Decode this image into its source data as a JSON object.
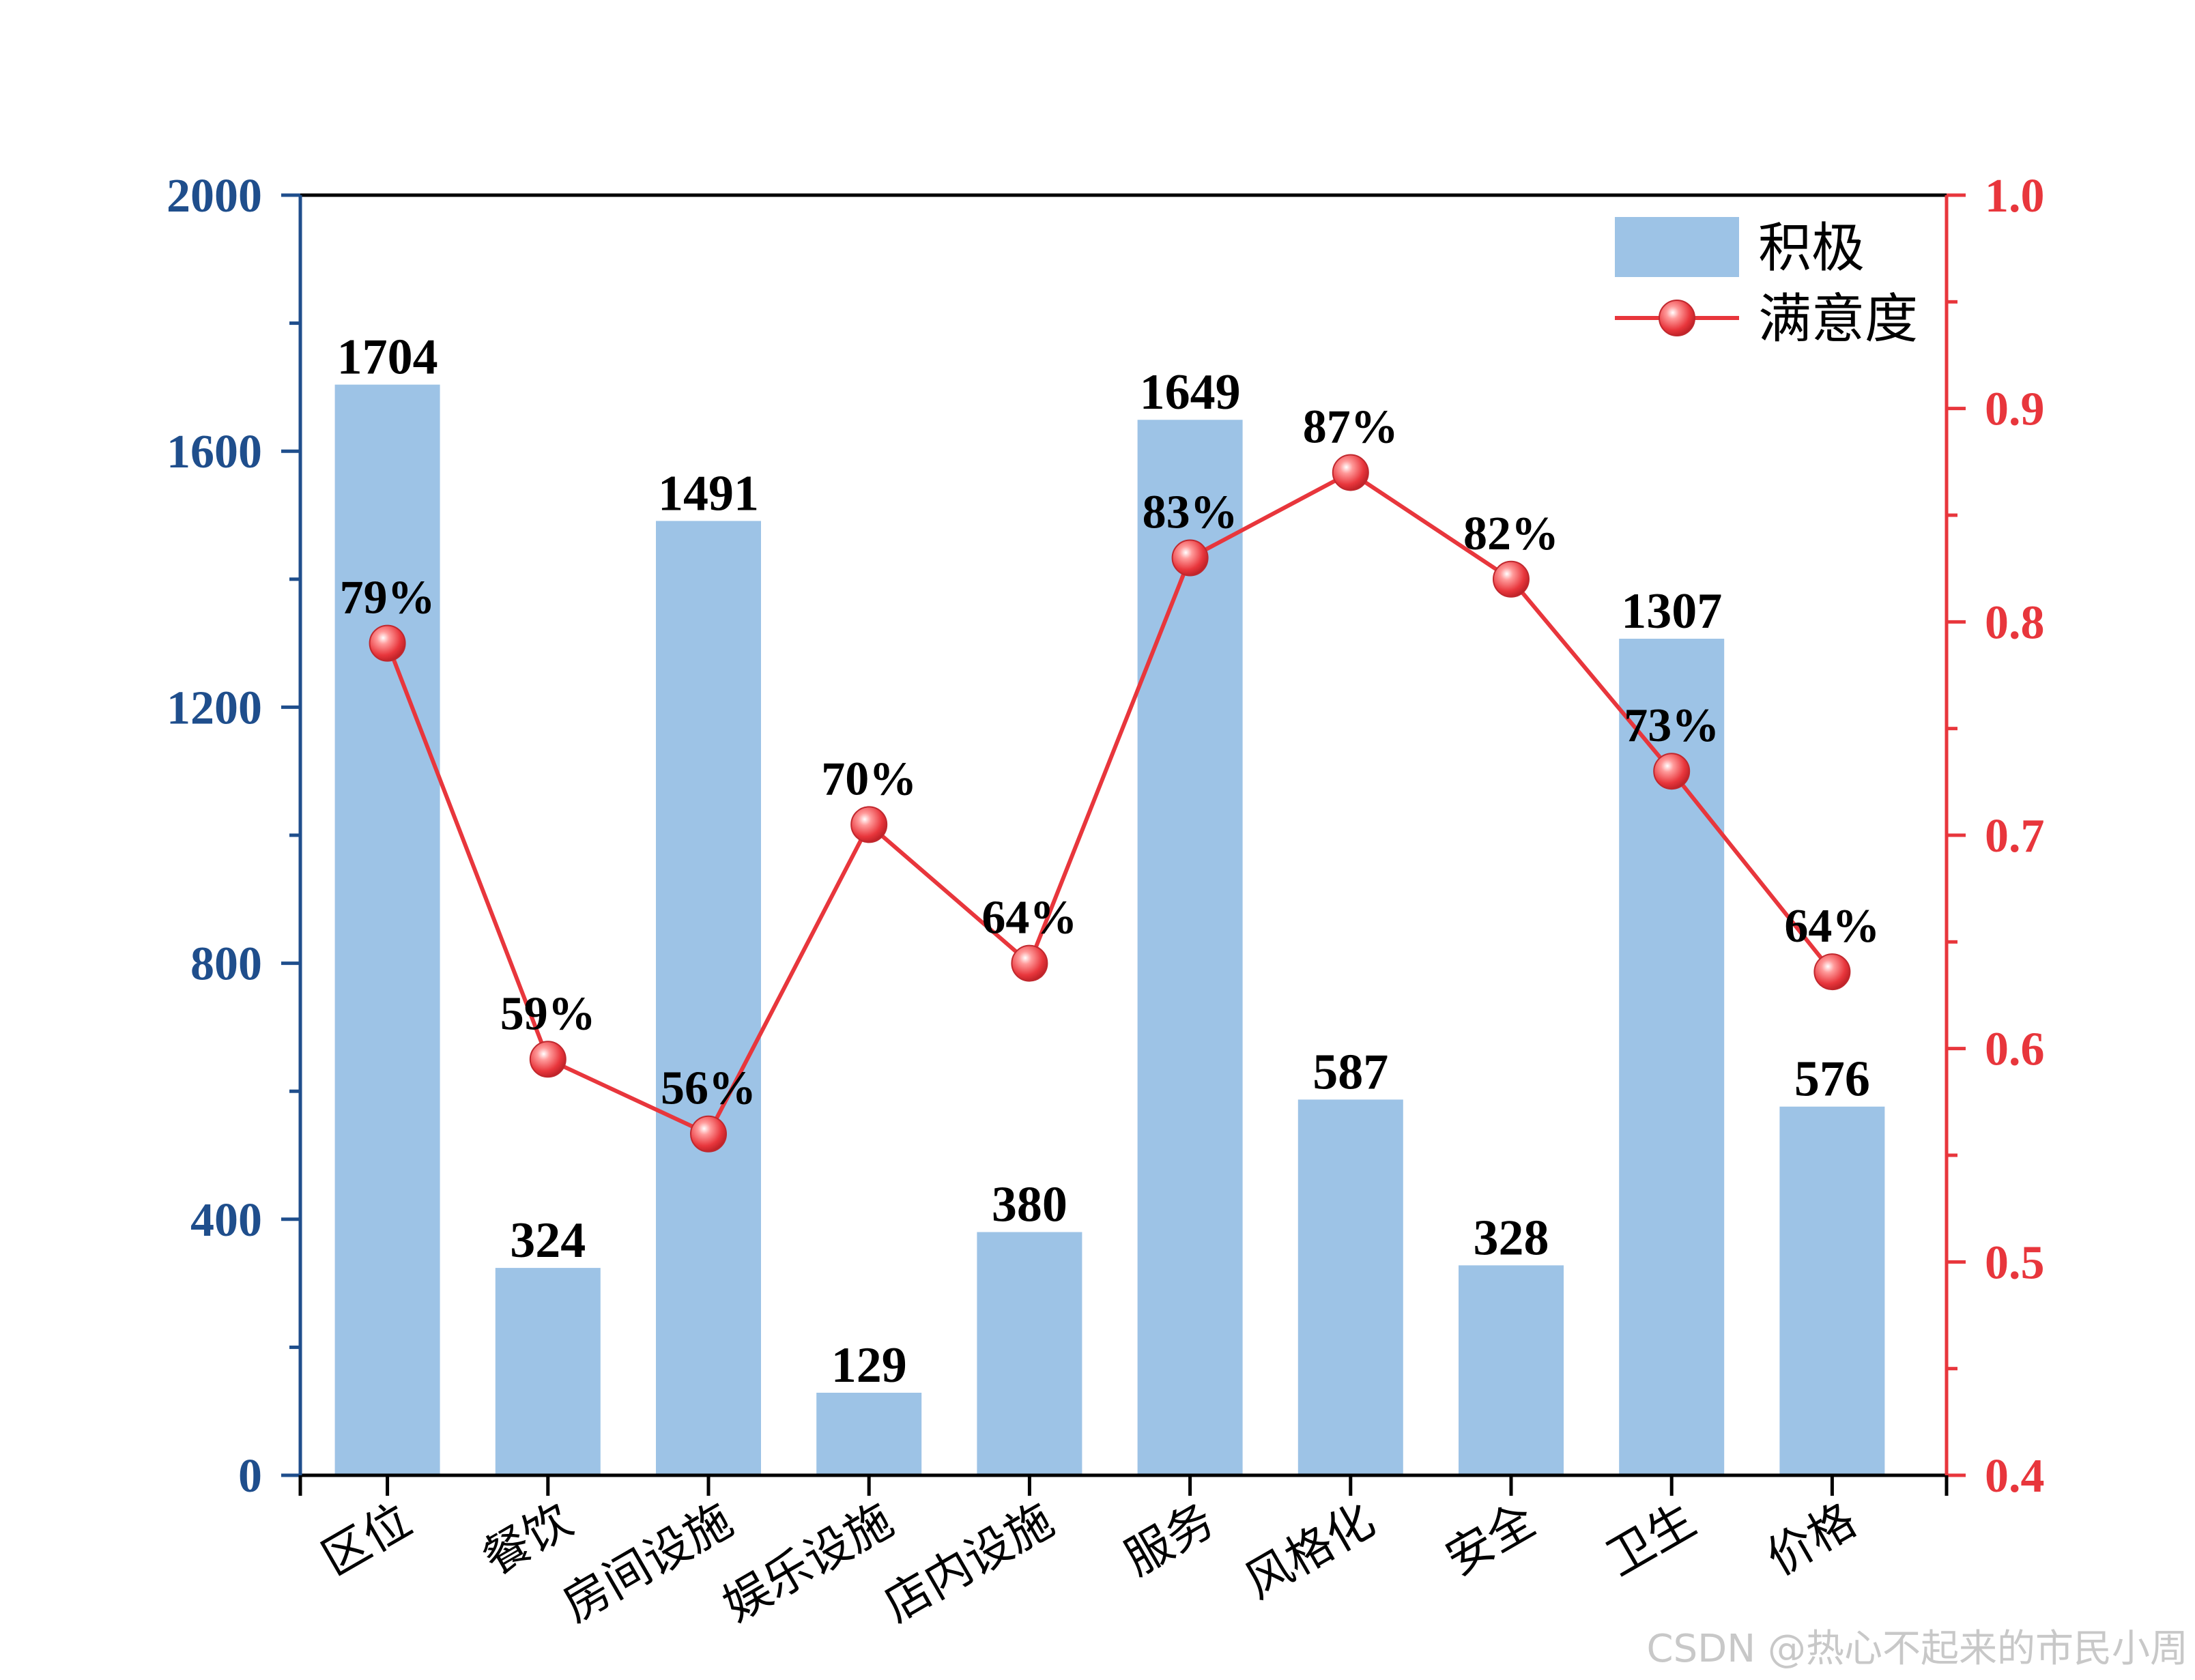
{
  "chart_data": {
    "type": "bar+line",
    "categories": [
      "区位",
      "餐饮",
      "房间设施",
      "娱乐设施",
      "店内设施",
      "服务",
      "风格化",
      "安全",
      "卫生",
      "价格"
    ],
    "series": [
      {
        "name": "积极",
        "type": "bar",
        "axis": "left",
        "values": [
          1704,
          324,
          1491,
          129,
          380,
          1649,
          587,
          328,
          1307,
          576
        ],
        "labels": [
          "1704",
          "324",
          "1491",
          "129",
          "380",
          "1649",
          "587",
          "328",
          "1307",
          "576"
        ],
        "color": "#9dc3e6"
      },
      {
        "name": "满意度",
        "type": "line",
        "axis": "right",
        "values": [
          0.79,
          0.595,
          0.56,
          0.705,
          0.64,
          0.83,
          0.87,
          0.82,
          0.73,
          0.636
        ],
        "labels": [
          "79%",
          "59%",
          "56%",
          "70%",
          "64%",
          "83%",
          "87%",
          "82%",
          "73%",
          "64%"
        ],
        "color": "#e8363c"
      }
    ],
    "y_left": {
      "lim": [
        0,
        2000
      ],
      "major_ticks": [
        0,
        400,
        800,
        1200,
        1600,
        2000
      ],
      "tick_labels": [
        "0",
        "400",
        "800",
        "1200",
        "1600",
        "2000"
      ],
      "color": "#1f4e8c"
    },
    "y_right": {
      "lim": [
        0.4,
        1.0
      ],
      "major_ticks": [
        0.4,
        0.5,
        0.6,
        0.7,
        0.8,
        0.9,
        1.0
      ],
      "tick_labels": [
        "0.4",
        "0.5",
        "0.6",
        "0.7",
        "0.8",
        "0.9",
        "1.0"
      ],
      "color": "#e8363c"
    },
    "legend": {
      "placement": "top-right",
      "entries": [
        "积极",
        "满意度"
      ]
    },
    "grid": false
  },
  "watermark": "CSDN @热心不起来的市民小周"
}
